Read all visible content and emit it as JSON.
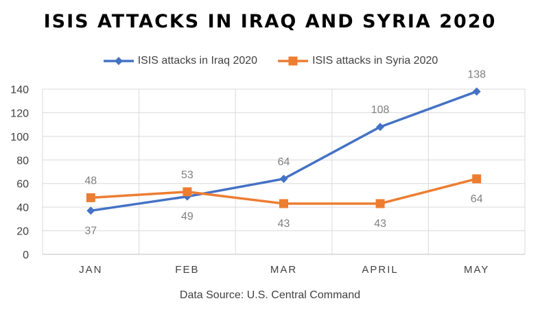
{
  "chart_data": {
    "type": "line",
    "title": "ISIS ATTACKS IN IRAQ AND SYRIA 2020",
    "categories": [
      "JAN",
      "FEB",
      "MAR",
      "APRIL",
      "MAY"
    ],
    "series": [
      {
        "name": "ISIS attacks in Iraq 2020",
        "values": [
          37,
          49,
          64,
          108,
          138
        ],
        "color": "#4472C4",
        "marker": "diamond",
        "label_position": [
          "below",
          "below",
          "above",
          "above",
          "above"
        ]
      },
      {
        "name": "ISIS attacks in Syria 2020",
        "values": [
          48,
          53,
          43,
          43,
          64
        ],
        "color": "#ED7D31",
        "marker": "square",
        "label_position": [
          "above",
          "above",
          "below",
          "below",
          "below"
        ]
      }
    ],
    "ylim": [
      0,
      140
    ],
    "yticks": [
      0,
      20,
      40,
      60,
      80,
      100,
      120,
      140
    ],
    "grid": {
      "horizontal": true,
      "vertical": true
    },
    "legend_position": "top",
    "xlabel": "",
    "ylabel": ""
  },
  "source": "Data Source: U.S. Central Command"
}
